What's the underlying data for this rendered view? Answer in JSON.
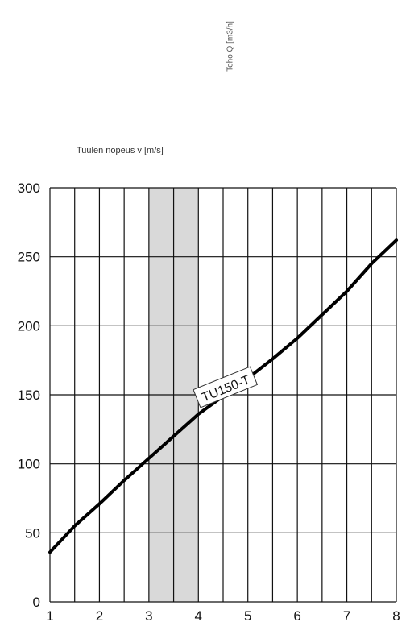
{
  "chart_data": {
    "type": "line",
    "ylabel": "Teho Q [m3/h]",
    "xlabel": "Tuulen nopeus v [m/s]",
    "xlim": [
      1,
      8
    ],
    "ylim": [
      0,
      300
    ],
    "x_ticks": [
      "1",
      "2",
      "3",
      "4",
      "5",
      "6",
      "7",
      "8"
    ],
    "y_ticks": [
      "0",
      "50",
      "100",
      "150",
      "200",
      "250",
      "300"
    ],
    "grid": true,
    "highlight_band": {
      "x_from": 3,
      "x_to": 4,
      "split_at": 3.5,
      "color": "#d9d9d9"
    },
    "series": [
      {
        "name": "TU150-T",
        "x": [
          1,
          1.5,
          2,
          2.5,
          3,
          3.5,
          4,
          4.5,
          5,
          5.5,
          6,
          6.5,
          7,
          7.5,
          8
        ],
        "y": [
          36,
          55,
          71,
          88,
          104,
          120,
          136,
          149,
          162,
          176,
          191,
          208,
          225,
          245,
          262
        ]
      }
    ],
    "annotations": [
      {
        "text": "TU150-T",
        "x": 4.55,
        "y": 155
      }
    ]
  }
}
